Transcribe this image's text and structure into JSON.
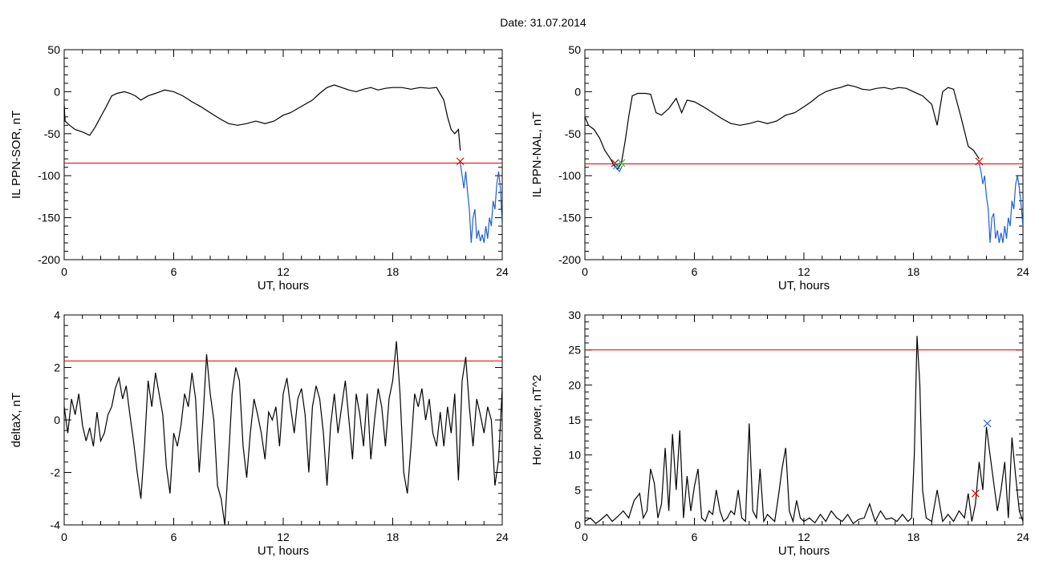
{
  "figure": {
    "date_label": "Date:  31.07.2014"
  },
  "chart_data": [
    {
      "id": "panel-ppn-sor",
      "type": "line",
      "xlabel": "UT, hours",
      "ylabel": "IL PPN-SOR, nT",
      "xlim": [
        0,
        24
      ],
      "ylim": [
        -200,
        50
      ],
      "xticks": [
        0,
        6,
        12,
        18,
        24
      ],
      "yticks": [
        -200,
        -150,
        -100,
        -50,
        0,
        50
      ],
      "threshold": -85,
      "series": [
        {
          "color": "#000000",
          "x": [
            0,
            0.05,
            0.3,
            0.6,
            1.0,
            1.4,
            1.7,
            2.0,
            2.3,
            2.6,
            2.9,
            3.3,
            3.6,
            3.9,
            4.2,
            4.6,
            5.0,
            5.5,
            6.0,
            6.5,
            7.0,
            7.5,
            8.0,
            8.5,
            9.0,
            9.5,
            10.0,
            10.5,
            11.0,
            11.5,
            12.0,
            12.4,
            12.8,
            13.2,
            13.6,
            14.0,
            14.4,
            14.8,
            15.2,
            15.6,
            16.0,
            16.4,
            16.8,
            17.2,
            17.6,
            18.0,
            18.5,
            19.0,
            19.5,
            20.0,
            20.4,
            20.8,
            21.0,
            21.2,
            21.4,
            21.6,
            21.7
          ],
          "y": [
            -15,
            -35,
            -40,
            -45,
            -48,
            -52,
            -42,
            -30,
            -18,
            -5,
            -2,
            0,
            -2,
            -5,
            -10,
            -5,
            -2,
            2,
            0,
            -5,
            -12,
            -18,
            -25,
            -32,
            -38,
            -40,
            -38,
            -35,
            -38,
            -35,
            -28,
            -25,
            -20,
            -15,
            -10,
            -2,
            5,
            8,
            5,
            2,
            0,
            3,
            5,
            2,
            4,
            5,
            5,
            3,
            5,
            4,
            5,
            -10,
            -30,
            -45,
            -50,
            -45,
            -70
          ]
        },
        {
          "color": "#1f5fcf",
          "x": [
            21.7,
            21.8,
            21.9,
            22.0,
            22.1,
            22.2,
            22.3,
            22.4,
            22.5,
            22.6,
            22.7,
            22.8,
            22.9,
            23.0,
            23.1,
            23.2,
            23.3,
            23.4,
            23.5,
            23.6,
            23.7,
            23.8,
            23.9,
            24.0
          ],
          "y": [
            -85,
            -100,
            -115,
            -95,
            -120,
            -140,
            -180,
            -150,
            -140,
            -175,
            -165,
            -178,
            -170,
            -180,
            -160,
            -175,
            -150,
            -160,
            -130,
            -140,
            -110,
            -95,
            -115,
            -160
          ]
        }
      ],
      "markers": [
        {
          "x": 21.7,
          "y": -83,
          "symbol": "x",
          "color": "#d40000"
        }
      ]
    },
    {
      "id": "panel-ppn-nal",
      "type": "line",
      "xlabel": "UT, hours",
      "ylabel": "IL PPN-NAL, nT",
      "xlim": [
        0,
        24
      ],
      "ylim": [
        -200,
        50
      ],
      "xticks": [
        0,
        6,
        12,
        18,
        24
      ],
      "yticks": [
        -200,
        -150,
        -100,
        -50,
        0,
        50
      ],
      "threshold": -86,
      "series": [
        {
          "color": "#000000",
          "x": [
            0,
            0.2,
            0.5,
            0.8,
            1.1,
            1.4,
            1.6,
            1.8,
            2.0,
            2.2,
            2.4,
            2.6,
            2.9,
            3.3,
            3.6,
            3.9,
            4.2,
            4.6,
            5.0,
            5.3,
            5.6,
            6.0,
            6.5,
            7.0,
            7.5,
            8.0,
            8.5,
            9.0,
            9.5,
            10.0,
            10.5,
            11.0,
            11.5,
            12.0,
            12.4,
            12.8,
            13.2,
            13.6,
            14.0,
            14.4,
            14.8,
            15.2,
            15.6,
            16.0,
            16.4,
            16.8,
            17.2,
            17.6,
            18.0,
            18.5,
            19.0,
            19.3,
            19.6,
            19.9,
            20.2,
            20.6,
            21.0,
            21.3,
            21.6
          ],
          "y": [
            -30,
            -40,
            -45,
            -55,
            -70,
            -80,
            -88,
            -92,
            -85,
            -60,
            -30,
            -5,
            -2,
            -2,
            -3,
            -25,
            -28,
            -20,
            -8,
            -25,
            -10,
            -12,
            -18,
            -25,
            -32,
            -38,
            -40,
            -38,
            -35,
            -38,
            -35,
            -28,
            -25,
            -18,
            -12,
            -5,
            0,
            3,
            5,
            8,
            6,
            3,
            2,
            4,
            5,
            3,
            5,
            4,
            0,
            -5,
            -15,
            -40,
            0,
            5,
            3,
            -30,
            -65,
            -70,
            -80
          ]
        },
        {
          "color": "#1f5fcf",
          "x": [
            21.6,
            21.7,
            21.8,
            21.9,
            22.0,
            22.1,
            22.2,
            22.3,
            22.4,
            22.5,
            22.6,
            22.7,
            22.8,
            22.9,
            23.0,
            23.1,
            23.2,
            23.3,
            23.4,
            23.5,
            23.6,
            23.7,
            23.8,
            23.9,
            24.0
          ],
          "y": [
            -85,
            -95,
            -110,
            -100,
            -125,
            -140,
            -180,
            -150,
            -145,
            -175,
            -165,
            -180,
            -168,
            -180,
            -160,
            -175,
            -150,
            -160,
            -130,
            -140,
            -110,
            -100,
            -115,
            -135,
            -160
          ]
        },
        {
          "color": "#1f5fcf",
          "x": [
            1.6,
            1.75,
            1.9,
            2.05
          ],
          "y": [
            -86,
            -92,
            -95,
            -88
          ]
        }
      ],
      "markers": [
        {
          "x": 1.65,
          "y": -85,
          "symbol": "x",
          "color": "#d40000"
        },
        {
          "x": 1.75,
          "y": -88,
          "symbol": "x",
          "color": "#1aa39a"
        },
        {
          "x": 2.0,
          "y": -85,
          "symbol": "x",
          "color": "#4aa84a"
        },
        {
          "x": 21.6,
          "y": -83,
          "symbol": "x",
          "color": "#d40000"
        }
      ]
    },
    {
      "id": "panel-deltax",
      "type": "line",
      "xlabel": "UT, hours",
      "ylabel": "deltaX, nT",
      "xlim": [
        0,
        24
      ],
      "ylim": [
        -4,
        4
      ],
      "xticks": [
        0,
        6,
        12,
        18,
        24
      ],
      "yticks": [
        -4,
        -2,
        0,
        2,
        4
      ],
      "threshold": 2.25,
      "series": [
        {
          "color": "#000000",
          "x": [
            0,
            0.2,
            0.4,
            0.6,
            0.8,
            1.0,
            1.2,
            1.4,
            1.6,
            1.8,
            2.0,
            2.2,
            2.4,
            2.6,
            2.8,
            3.0,
            3.2,
            3.4,
            3.6,
            3.8,
            4.0,
            4.2,
            4.4,
            4.6,
            4.8,
            5.0,
            5.2,
            5.4,
            5.6,
            5.8,
            6.0,
            6.2,
            6.4,
            6.6,
            6.8,
            7.0,
            7.2,
            7.4,
            7.6,
            7.8,
            8.0,
            8.2,
            8.4,
            8.6,
            8.8,
            9.0,
            9.2,
            9.4,
            9.6,
            9.8,
            10.0,
            10.2,
            10.4,
            10.6,
            10.8,
            11.0,
            11.2,
            11.4,
            11.6,
            11.8,
            12.0,
            12.2,
            12.4,
            12.6,
            12.8,
            13.0,
            13.2,
            13.4,
            13.6,
            13.8,
            14.0,
            14.2,
            14.4,
            14.6,
            14.8,
            15.0,
            15.2,
            15.4,
            15.6,
            15.8,
            16.0,
            16.2,
            16.4,
            16.6,
            16.8,
            17.0,
            17.2,
            17.4,
            17.6,
            17.8,
            18.0,
            18.2,
            18.4,
            18.6,
            18.8,
            19.0,
            19.2,
            19.4,
            19.6,
            19.8,
            20.0,
            20.2,
            20.4,
            20.6,
            20.8,
            21.0,
            21.2,
            21.4,
            21.6,
            21.8,
            22.0,
            22.2,
            22.4,
            22.6,
            22.8,
            23.0,
            23.2,
            23.4,
            23.6,
            23.8,
            24.0
          ],
          "y": [
            0.5,
            -0.5,
            0.8,
            0.2,
            1.0,
            -0.2,
            -0.8,
            -0.3,
            -1.0,
            0.3,
            -0.8,
            -0.5,
            0.2,
            0.5,
            1.2,
            1.6,
            0.8,
            1.3,
            0.2,
            -0.8,
            -2.0,
            -3.0,
            -1.0,
            1.5,
            0.5,
            1.8,
            1.0,
            0.2,
            -1.8,
            -2.8,
            -0.5,
            -1.0,
            -0.2,
            1.0,
            0.5,
            1.8,
            0.8,
            -2.0,
            0.0,
            2.5,
            1.0,
            0.0,
            -2.5,
            -3.0,
            -4.0,
            -1.5,
            1.0,
            2.0,
            1.5,
            -1.0,
            -2.2,
            -0.5,
            0.8,
            0.2,
            -0.5,
            -1.5,
            0.3,
            0.0,
            0.5,
            -1.0,
            1.0,
            1.6,
            0.5,
            -0.5,
            0.8,
            1.2,
            0.2,
            -2.0,
            0.5,
            1.3,
            0.8,
            -0.5,
            -2.5,
            -0.2,
            1.0,
            -0.5,
            0.5,
            1.5,
            0.0,
            -1.5,
            1.0,
            0.2,
            -1.0,
            1.0,
            -1.5,
            0.0,
            1.2,
            0.5,
            -1.0,
            0.8,
            1.5,
            3.0,
            1.0,
            -2.0,
            -2.8,
            -1.0,
            1.0,
            0.5,
            1.2,
            0.0,
            0.8,
            -0.5,
            -1.0,
            0.3,
            -1.0,
            0.5,
            -0.5,
            1.0,
            -2.3,
            1.5,
            2.4,
            0.5,
            -1.0,
            0.8,
            0.2,
            -0.5,
            0.5,
            0.0,
            -2.5,
            -1.5,
            1.2
          ]
        }
      ]
    },
    {
      "id": "panel-hor-power",
      "type": "line",
      "xlabel": "UT, hours",
      "ylabel": "Hor. power, nT^2",
      "xlim": [
        0,
        24
      ],
      "ylim": [
        0,
        30
      ],
      "xticks": [
        0,
        6,
        12,
        18,
        24
      ],
      "yticks": [
        0,
        5,
        10,
        15,
        20,
        25,
        30
      ],
      "threshold": 25,
      "series": [
        {
          "color": "#000000",
          "x": [
            0,
            0.3,
            0.6,
            0.9,
            1.2,
            1.5,
            1.8,
            2.1,
            2.4,
            2.7,
            3.0,
            3.2,
            3.4,
            3.6,
            3.8,
            4.0,
            4.2,
            4.4,
            4.6,
            4.8,
            5.0,
            5.2,
            5.4,
            5.6,
            5.8,
            6.0,
            6.2,
            6.4,
            6.6,
            6.8,
            7.0,
            7.2,
            7.4,
            7.6,
            7.8,
            8.0,
            8.2,
            8.4,
            8.6,
            8.8,
            9.0,
            9.2,
            9.4,
            9.6,
            9.8,
            10.0,
            10.2,
            10.4,
            10.6,
            10.8,
            11.0,
            11.2,
            11.4,
            11.6,
            11.8,
            12.0,
            12.3,
            12.6,
            12.9,
            13.2,
            13.5,
            13.8,
            14.1,
            14.4,
            14.7,
            15.0,
            15.3,
            15.6,
            15.9,
            16.2,
            16.5,
            16.8,
            17.1,
            17.4,
            17.7,
            17.9,
            18.05,
            18.2,
            18.35,
            18.5,
            18.7,
            19.0,
            19.3,
            19.6,
            19.9,
            20.2,
            20.5,
            20.8,
            21.0,
            21.2,
            21.4,
            21.6,
            21.8,
            22.0,
            22.2,
            22.4,
            22.6,
            22.8,
            23.0,
            23.2,
            23.4,
            23.6,
            23.8,
            24.0
          ],
          "y": [
            0.5,
            1.0,
            0.2,
            0.8,
            1.5,
            0.5,
            1.2,
            2.0,
            1.0,
            3.5,
            4.5,
            1.0,
            2.0,
            8.0,
            6.0,
            1.0,
            3.0,
            11.0,
            2.0,
            13.0,
            5.0,
            13.5,
            1.0,
            7.0,
            2.0,
            5.5,
            8.0,
            1.0,
            0.5,
            2.0,
            1.5,
            5.0,
            2.0,
            0.5,
            1.0,
            2.0,
            1.5,
            5.0,
            1.0,
            0.5,
            14.5,
            2.0,
            1.0,
            8.0,
            0.5,
            1.5,
            1.0,
            0.5,
            4.0,
            8.0,
            11.0,
            2.0,
            0.5,
            3.5,
            1.0,
            0.5,
            1.0,
            0.3,
            1.5,
            0.5,
            2.0,
            1.0,
            0.5,
            1.5,
            0.2,
            0.8,
            1.0,
            3.0,
            0.5,
            2.0,
            0.8,
            1.0,
            0.5,
            1.5,
            0.5,
            1.0,
            10.0,
            27.0,
            20.0,
            5.0,
            1.0,
            0.5,
            5.0,
            0.5,
            1.5,
            0.5,
            2.0,
            1.0,
            4.5,
            0.5,
            3.0,
            9.0,
            5.0,
            14.0,
            10.0,
            6.0,
            2.0,
            5.0,
            9.0,
            1.0,
            12.5,
            7.0,
            2.0,
            0.5
          ]
        }
      ],
      "markers": [
        {
          "x": 21.4,
          "y": 4.5,
          "symbol": "x",
          "color": "#d40000"
        },
        {
          "x": 22.05,
          "y": 14.5,
          "symbol": "x",
          "color": "#1f5fcf"
        }
      ]
    }
  ]
}
